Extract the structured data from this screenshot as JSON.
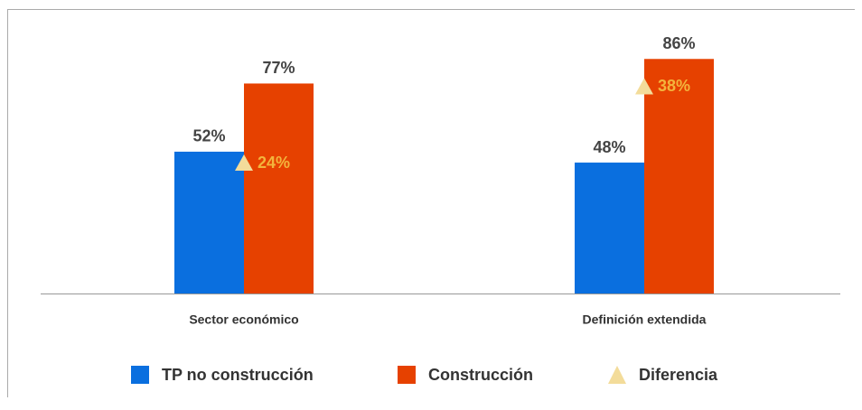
{
  "chart_data": {
    "type": "bar",
    "categories": [
      "Sector económico",
      "Definición extendida"
    ],
    "series": [
      {
        "name": "TP no construcción",
        "color": "#0a6fdf",
        "values": [
          52,
          48
        ],
        "value_labels": [
          "52%",
          "48%"
        ]
      },
      {
        "name": "Construcción",
        "color": "#e64100",
        "values": [
          77,
          86
        ],
        "value_labels": [
          "77%",
          "86%"
        ]
      },
      {
        "name": "Diferencia",
        "color": "#f3dc9a",
        "marker": "triangle",
        "label_color": "#f3b43c",
        "values": [
          24,
          38
        ],
        "value_labels": [
          "24%",
          "38%"
        ]
      }
    ],
    "ylim": [
      0,
      100
    ]
  }
}
